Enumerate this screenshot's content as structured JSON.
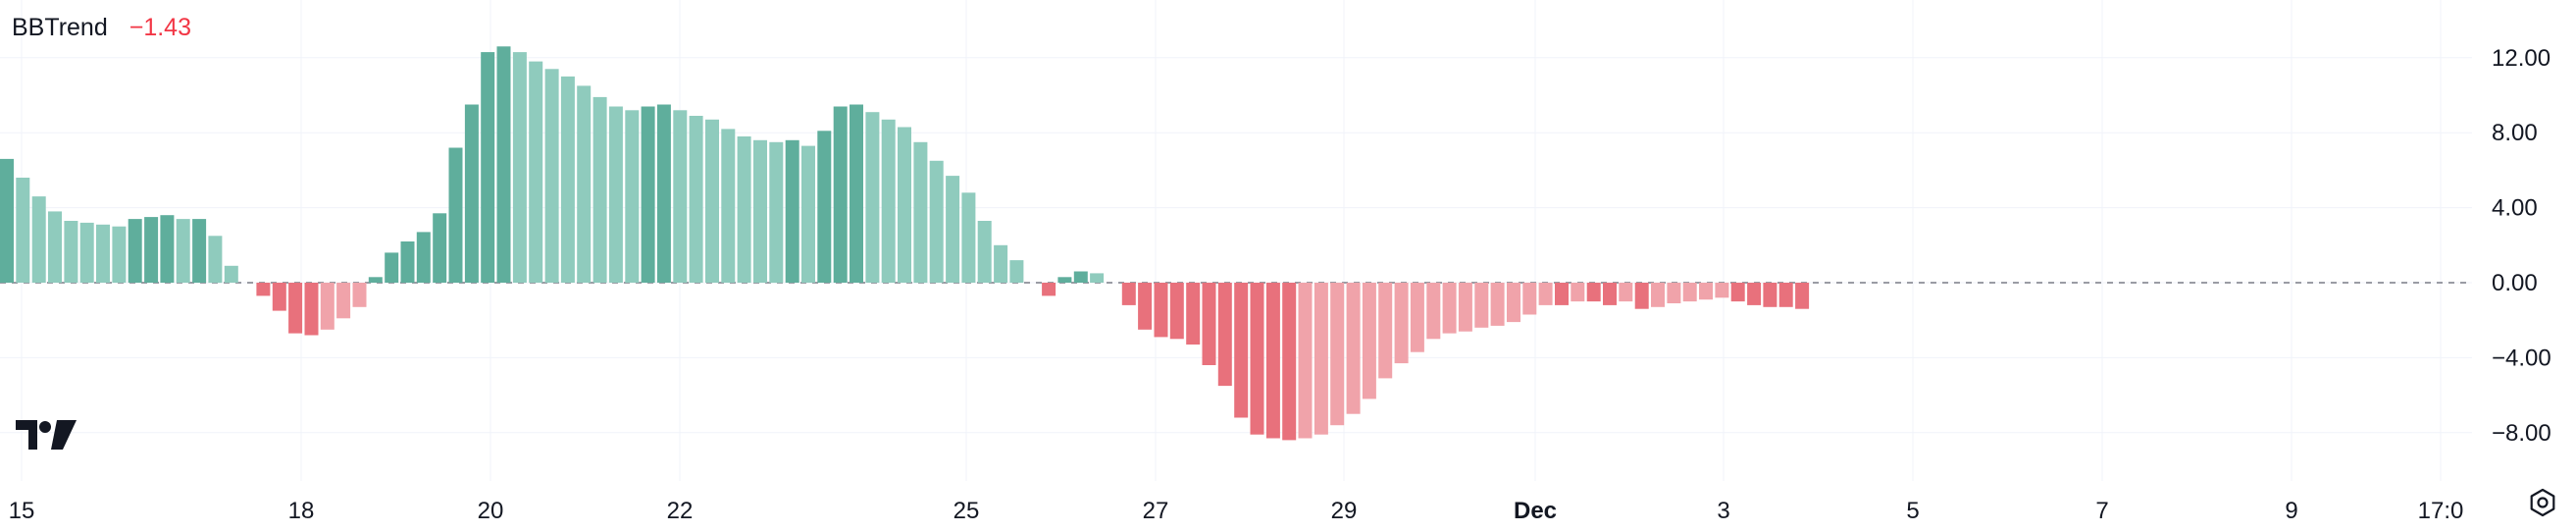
{
  "indicator": {
    "name": "BBTrend",
    "value": "−1.43",
    "value_color": "#f23645"
  },
  "logo_icon": "tradingview-logo-icon",
  "settings_icon": "gear-icon",
  "colors": {
    "pos_strong": "#5fae9c",
    "pos_weak": "#8fcbbd",
    "neg_strong": "#e8717c",
    "neg_weak": "#f0a3aa",
    "grid": "#f0f3fa",
    "zero_line": "#787b86",
    "text": "#131722"
  },
  "chart_data": {
    "type": "bar",
    "title": "BBTrend",
    "x_labels": [
      "15",
      "18",
      "20",
      "22",
      "25",
      "27",
      "29",
      "Dec",
      "3",
      "5",
      "7",
      "9",
      "17:0"
    ],
    "y_ticks": [
      "12.00",
      "8.00",
      "4.00",
      "0.00",
      "−4.00",
      "−8.00"
    ],
    "y_tick_values": [
      12,
      8,
      4,
      0,
      -4,
      -8
    ],
    "ylim": [
      -10.3,
      14.8
    ],
    "zero_line": 0,
    "values": [
      6.6,
      5.6,
      4.6,
      3.8,
      3.3,
      3.2,
      3.1,
      3.0,
      3.4,
      3.5,
      3.6,
      3.4,
      3.4,
      2.5,
      0.9,
      0,
      -0.7,
      -1.5,
      -2.7,
      -2.8,
      -2.5,
      -1.9,
      -1.3,
      0.3,
      1.6,
      2.2,
      2.7,
      3.7,
      7.2,
      9.5,
      12.3,
      12.6,
      12.3,
      11.8,
      11.4,
      11.0,
      10.5,
      9.9,
      9.4,
      9.2,
      9.4,
      9.5,
      9.2,
      8.9,
      8.7,
      8.2,
      7.8,
      7.6,
      7.5,
      7.6,
      7.3,
      8.1,
      9.4,
      9.5,
      9.1,
      8.7,
      8.3,
      7.5,
      6.5,
      5.7,
      4.8,
      3.3,
      2.0,
      1.2,
      0,
      -0.7,
      0.3,
      0.6,
      0.5,
      0,
      -1.2,
      -2.5,
      -2.9,
      -3.0,
      -3.3,
      -4.4,
      -5.5,
      -7.2,
      -8.1,
      -8.3,
      -8.4,
      -8.3,
      -8.1,
      -7.6,
      -7.0,
      -6.2,
      -5.1,
      -4.3,
      -3.7,
      -3.0,
      -2.7,
      -2.6,
      -2.4,
      -2.3,
      -2.1,
      -1.7,
      -1.2,
      -1.2,
      -1.0,
      -1.0,
      -1.2,
      -1.0,
      -1.4,
      -1.3,
      -1.1,
      -1.0,
      -0.9,
      -0.8,
      -1.0,
      -1.2,
      -1.3,
      -1.3,
      -1.4
    ]
  }
}
